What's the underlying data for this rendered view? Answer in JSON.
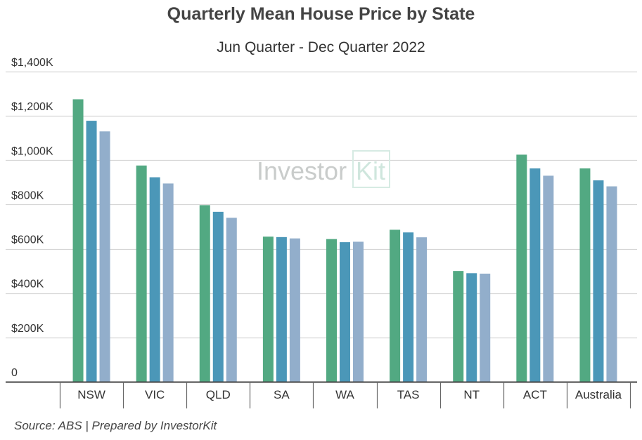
{
  "chart_data": {
    "type": "bar",
    "title": "Quarterly Mean House Price by State",
    "subtitle": "Jun Quarter - Dec Quarter 2022",
    "categories": [
      "NSW",
      "VIC",
      "QLD",
      "SA",
      "WA",
      "TAS",
      "NT",
      "ACT",
      "Australia"
    ],
    "series": [
      {
        "color": "#52a982",
        "values": [
          1275,
          976,
          797,
          655,
          644,
          686,
          500,
          1025,
          963
        ]
      },
      {
        "color": "#4b97b8",
        "values": [
          1178,
          923,
          767,
          653,
          630,
          674,
          490,
          963,
          909
        ]
      },
      {
        "color": "#92aecb",
        "values": [
          1130,
          895,
          740,
          647,
          632,
          652,
          488,
          930,
          882
        ]
      }
    ],
    "yticks": [
      0,
      200,
      400,
      600,
      800,
      1000,
      1200,
      1400
    ],
    "ytick_labels": [
      "0",
      "$200K",
      "$400K",
      "$600K",
      "$800K",
      "$1,000K",
      "$1,200K",
      "$1,400K"
    ],
    "ylim": [
      0,
      1400
    ],
    "grid": true,
    "watermark": {
      "text": "Investor",
      "boxed": "Kit"
    },
    "source": "Source: ABS | Prepared by InvestorKit"
  }
}
